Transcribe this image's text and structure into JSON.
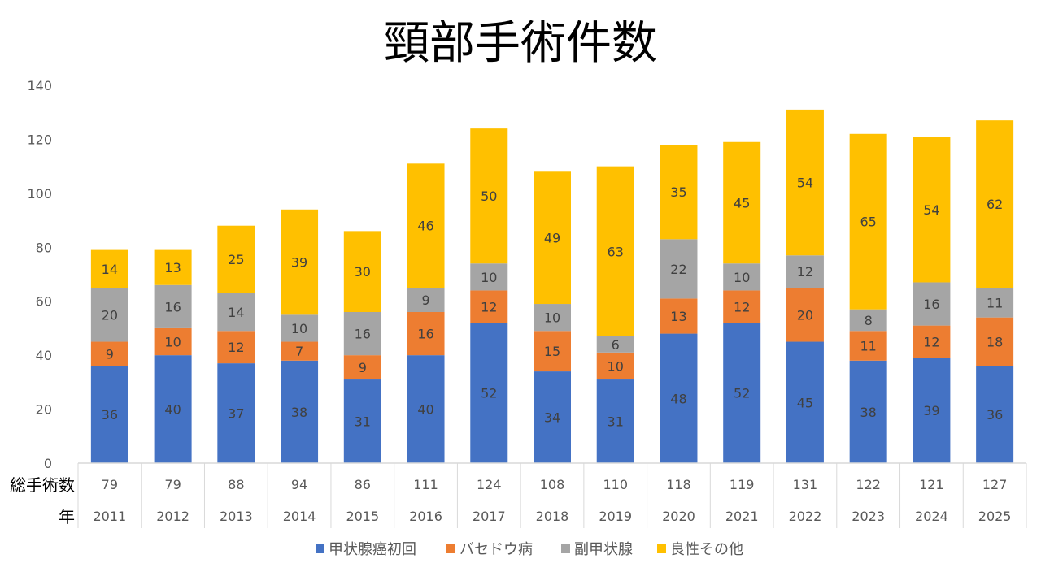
{
  "chart_data": {
    "type": "bar",
    "stacked": true,
    "title": "頸部手術件数",
    "categories": [
      "2011",
      "2012",
      "2013",
      "2014",
      "2015",
      "2016",
      "2017",
      "2018",
      "2019",
      "2020",
      "2021",
      "2022",
      "2023",
      "2024",
      "2025"
    ],
    "series": [
      {
        "name": "甲状腺癌初回",
        "color": "#4472C4",
        "values": [
          36,
          40,
          37,
          38,
          31,
          40,
          52,
          34,
          31,
          48,
          52,
          45,
          38,
          39,
          36
        ]
      },
      {
        "name": "バセドウ病",
        "color": "#ED7D31",
        "values": [
          9,
          10,
          12,
          7,
          9,
          16,
          12,
          15,
          10,
          13,
          12,
          20,
          11,
          12,
          18
        ]
      },
      {
        "name": "副甲状腺",
        "color": "#A5A5A5",
        "values": [
          20,
          16,
          14,
          10,
          16,
          9,
          10,
          10,
          6,
          22,
          10,
          12,
          8,
          16,
          11
        ]
      },
      {
        "name": "良性その他",
        "color": "#FFC000",
        "values": [
          14,
          13,
          25,
          39,
          30,
          46,
          50,
          49,
          63,
          35,
          45,
          54,
          65,
          54,
          62
        ]
      }
    ],
    "table": {
      "rows": [
        {
          "header": "総手術数",
          "values": [
            "79",
            "79",
            "88",
            "94",
            "86",
            "111",
            "124",
            "108",
            "110",
            "118",
            "119",
            "131",
            "122",
            "121",
            "127"
          ]
        },
        {
          "header": "年",
          "values": [
            "2011",
            "2012",
            "2013",
            "2014",
            "2015",
            "2016",
            "2017",
            "2018",
            "2019",
            "2020",
            "2021",
            "2022",
            "2023",
            "2024",
            "2025"
          ]
        }
      ]
    },
    "ylim": [
      0,
      140
    ],
    "yticks": [
      0,
      20,
      40,
      60,
      80,
      100,
      120,
      140
    ],
    "grid": false,
    "legend": "bottom",
    "xlabel": "",
    "ylabel": ""
  }
}
